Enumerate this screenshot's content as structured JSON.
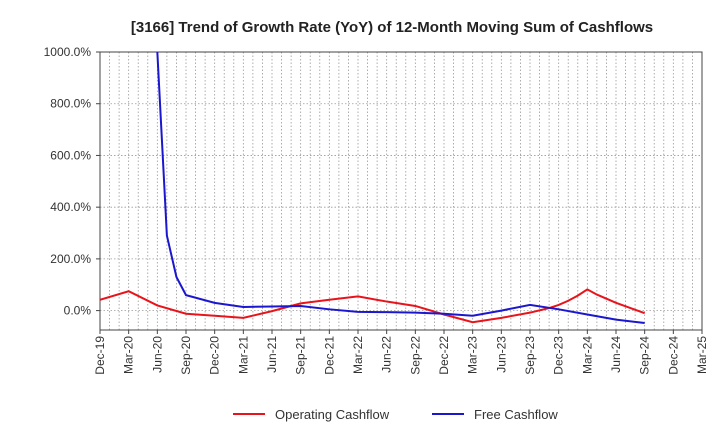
{
  "chart_data": {
    "type": "line",
    "title": "[3166]  Trend of Growth Rate (YoY) of 12-Month Moving Sum of Cashflows",
    "xlabel": "",
    "ylabel": "",
    "x_tick_labels": [
      "Dec-19",
      "Mar-20",
      "Jun-20",
      "Sep-20",
      "Dec-20",
      "Mar-21",
      "Jun-21",
      "Sep-21",
      "Dec-21",
      "Mar-22",
      "Jun-22",
      "Sep-22",
      "Dec-22",
      "Mar-23",
      "Jun-23",
      "Sep-23",
      "Dec-23",
      "Mar-24",
      "Jun-24",
      "Sep-24",
      "Dec-24",
      "Mar-25"
    ],
    "y_tick_labels": [
      "1000.0%",
      "800.0%",
      "600.0%",
      "400.0%",
      "200.0%",
      "0.0%"
    ],
    "y_ticks": [
      1000,
      800,
      600,
      400,
      200,
      0
    ],
    "ylim": [
      -75,
      1000
    ],
    "grid": true,
    "legend_position": "bottom",
    "series": [
      {
        "name": "Operating Cashflow",
        "color": "#e8141b",
        "x": [
          "Dec-19",
          "Mar-20",
          "Jun-20",
          "Sep-20",
          "Dec-20",
          "Mar-21",
          "Jun-21",
          "Sep-21",
          "Dec-21",
          "Mar-22",
          "Jun-22",
          "Sep-22",
          "Dec-22",
          "Mar-23",
          "Jun-23",
          "Sep-23",
          "Nov-23",
          "Dec-23",
          "Jan-24",
          "Feb-24",
          "Mar-24",
          "Apr-24",
          "Jun-24",
          "Sep-24"
        ],
        "values": [
          42,
          75,
          20,
          -12,
          -20,
          -28,
          -2,
          28,
          42,
          55,
          35,
          18,
          -15,
          -45,
          -28,
          -8,
          10,
          22,
          38,
          58,
          82,
          62,
          30,
          -10
        ]
      },
      {
        "name": "Free Cashflow",
        "color": "#1b17d0",
        "x": [
          "Mar-20",
          "Jun-20",
          "Jul-20",
          "Aug-20",
          "Sep-20",
          "Dec-20",
          "Mar-21",
          "Jun-21",
          "Sep-21",
          "Dec-21",
          "Mar-22",
          "Jun-22",
          "Sep-22",
          "Dec-22",
          "Mar-23",
          "Jun-23",
          "Sep-23",
          "Dec-23",
          "Mar-24",
          "Jun-24",
          "Sep-24"
        ],
        "values": [
          null,
          1000,
          290,
          130,
          60,
          30,
          14,
          16,
          18,
          5,
          -5,
          -6,
          -8,
          -12,
          -20,
          0,
          22,
          5,
          -15,
          -35,
          -48
        ]
      }
    ]
  }
}
